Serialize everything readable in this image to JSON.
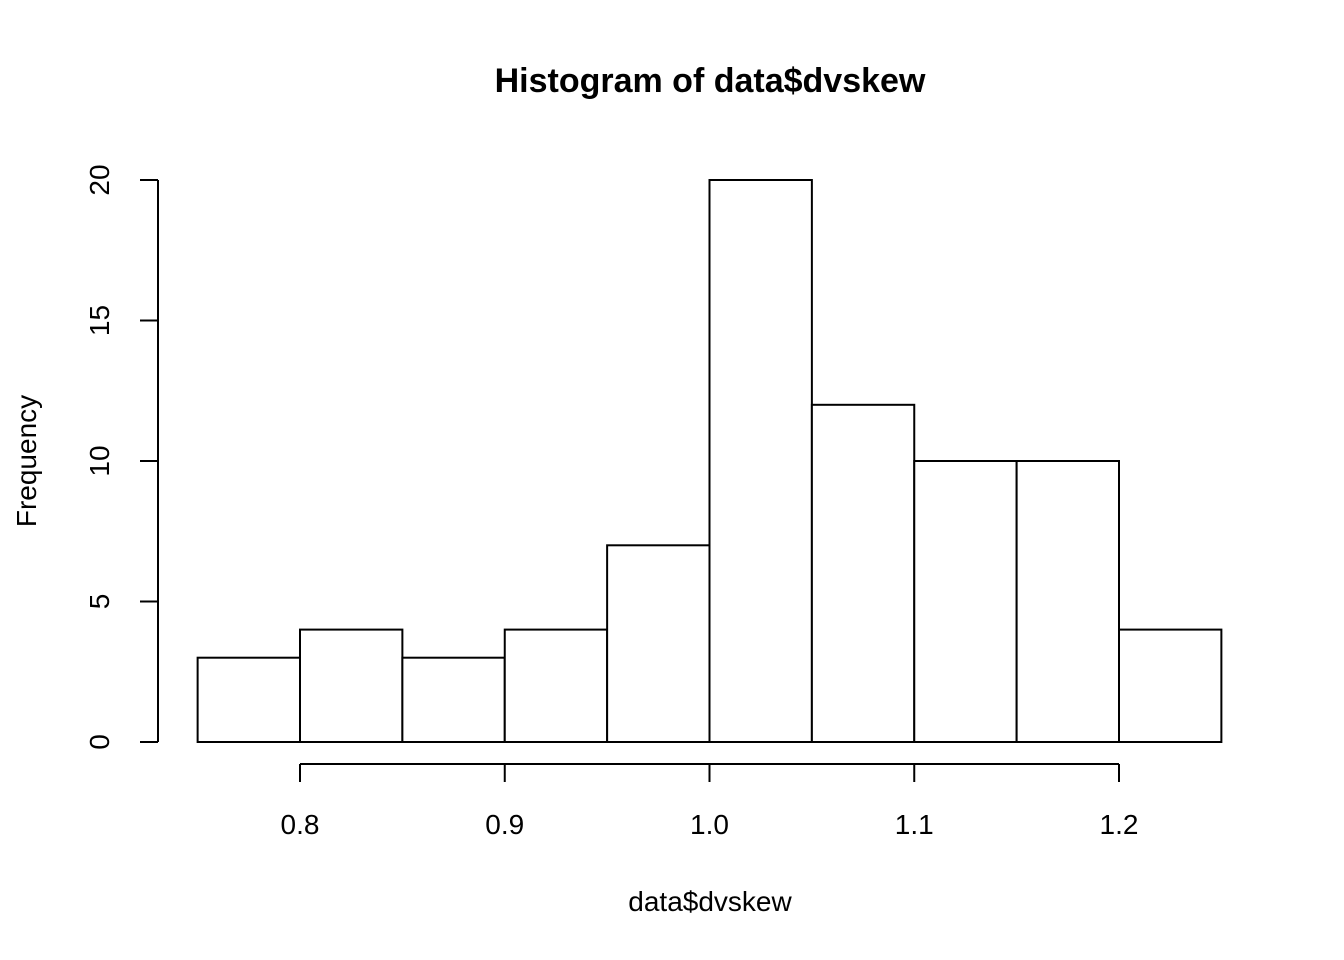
{
  "chart_data": {
    "type": "bar",
    "subtype": "histogram",
    "title": "Histogram of data$dvskew",
    "xlabel": "data$dvskew",
    "ylabel": "Frequency",
    "bins": [
      {
        "x0": 0.75,
        "x1": 0.8,
        "count": 3
      },
      {
        "x0": 0.8,
        "x1": 0.85,
        "count": 4
      },
      {
        "x0": 0.85,
        "x1": 0.9,
        "count": 3
      },
      {
        "x0": 0.9,
        "x1": 0.95,
        "count": 4
      },
      {
        "x0": 0.95,
        "x1": 1.0,
        "count": 7
      },
      {
        "x0": 1.0,
        "x1": 1.05,
        "count": 20
      },
      {
        "x0": 1.05,
        "x1": 1.1,
        "count": 12
      },
      {
        "x0": 1.1,
        "x1": 1.15,
        "count": 10
      },
      {
        "x0": 1.15,
        "x1": 1.2,
        "count": 10
      },
      {
        "x0": 1.2,
        "x1": 1.25,
        "count": 4
      }
    ],
    "xlim": [
      0.75,
      1.25
    ],
    "ylim": [
      0,
      20
    ],
    "x_ticks": [
      0.8,
      0.9,
      1.0,
      1.1,
      1.2
    ],
    "x_tick_labels": [
      "0.8",
      "0.9",
      "1.0",
      "1.1",
      "1.2"
    ],
    "y_ticks": [
      0,
      5,
      10,
      15,
      20
    ],
    "y_tick_labels": [
      "0",
      "5",
      "10",
      "15",
      "20"
    ],
    "grid": false,
    "legend": "none",
    "colors": {
      "bar_fill": "#ffffff",
      "bar_stroke": "#000000"
    }
  }
}
